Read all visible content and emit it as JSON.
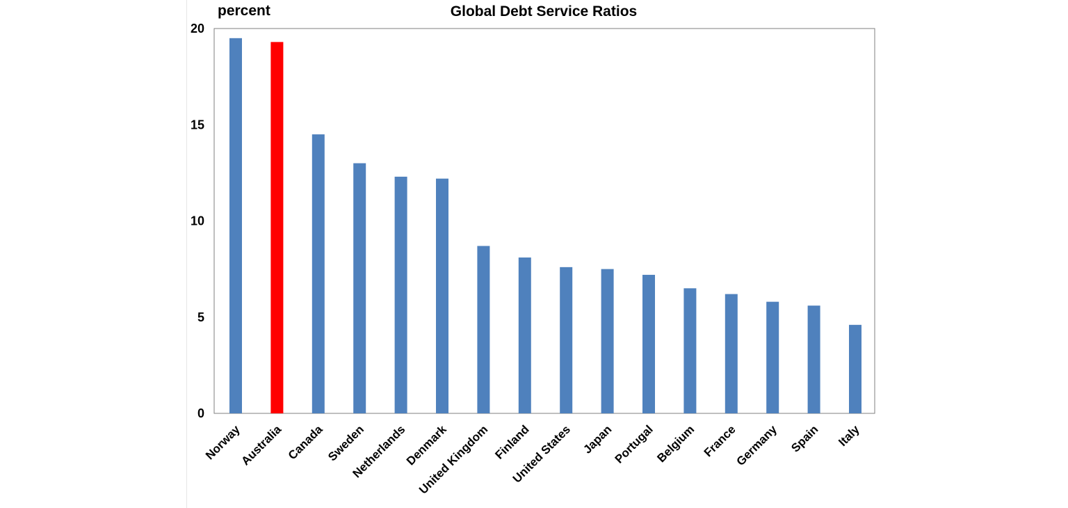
{
  "chart_data": {
    "type": "bar",
    "title": "Global Debt Service Ratios",
    "ylabel": "percent",
    "xlabel": "",
    "categories": [
      "Norway",
      "Australia",
      "Canada",
      "Sweden",
      "Netherlands",
      "Denmark",
      "United Kingdom",
      "Finland",
      "United States",
      "Japan",
      "Portugal",
      "Belgium",
      "France",
      "Germany",
      "Spain",
      "Italy"
    ],
    "values": [
      19.5,
      19.3,
      14.5,
      13.0,
      12.3,
      12.2,
      8.7,
      8.1,
      7.6,
      7.5,
      7.2,
      6.5,
      6.2,
      5.8,
      5.6,
      4.6
    ],
    "ylim": [
      0,
      20
    ],
    "yticks": [
      0,
      5,
      10,
      15,
      20
    ],
    "grid": false,
    "legend": "none",
    "colors": {
      "default": "#4f81bd",
      "highlight": "#ff0000",
      "highlight_category": "Australia"
    }
  }
}
